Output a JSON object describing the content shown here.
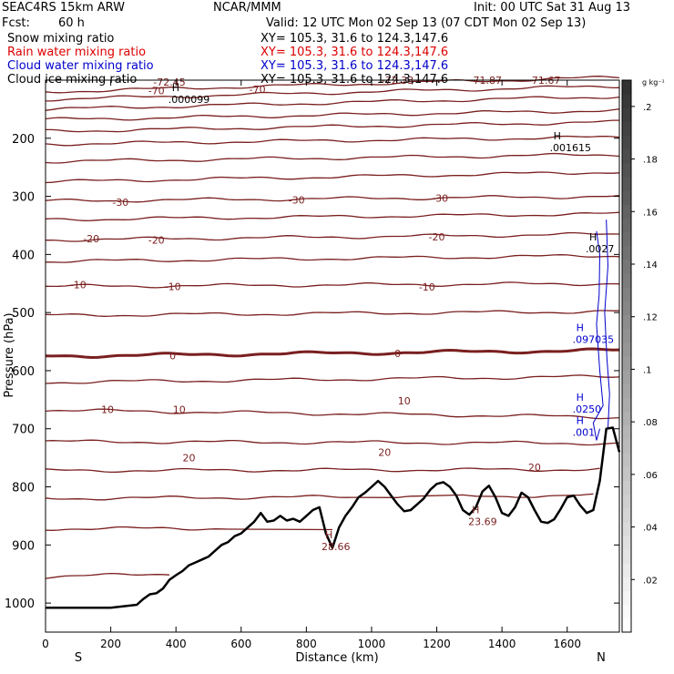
{
  "header": {
    "model": "SEAC4RS 15km ARW",
    "org": "NCAR/MMM",
    "init": "Init: 00 UTC Sat 31 Aug 13",
    "fcst_label": "Fcst:",
    "fcst_value": "60 h",
    "valid": "Valid: 12 UTC Mon 02 Sep 13 (07 CDT Mon 02 Sep 13)"
  },
  "fields": [
    {
      "name": "Snow mixing ratio",
      "xy": "XY= 105.3, 31.6 to 124.3,147.6",
      "color": "#000000"
    },
    {
      "name": "Rain water mixing ratio",
      "xy": "XY= 105.3, 31.6 to 124.3,147.6",
      "color": "#dd0000"
    },
    {
      "name": "Cloud water mixing ratio",
      "xy": "XY= 105.3, 31.6 to 124.3,147.6",
      "color": "#0000cc"
    },
    {
      "name": "Cloud ice mixing ratio",
      "xy": "XY= 105.3, 31.6 to 124.3,147.6",
      "color": "#000000"
    }
  ],
  "chart_data": {
    "type": "line",
    "xlabel": "Distance (km)",
    "ylabel": "Pressure (hPa)",
    "xlim": [
      0,
      1760
    ],
    "ylim": [
      100,
      1050
    ],
    "x_ticks": [
      0,
      200,
      400,
      600,
      800,
      1000,
      1200,
      1400,
      1600
    ],
    "y_ticks": [
      200,
      300,
      400,
      500,
      600,
      700,
      800,
      900,
      1000
    ],
    "direction_left": "S",
    "direction_right": "N",
    "colorbar_unit": "g kg⁻¹",
    "colorbar_ticks": [
      ".02",
      ".04",
      ".06",
      ".08",
      ".1",
      ".12",
      ".14",
      ".16",
      ".18",
      ".2"
    ],
    "contour_labels": [
      "-72.45",
      "-72.33",
      "-71.87",
      "-71.67",
      "-70",
      "-30",
      "-20",
      "-10",
      "0",
      "10",
      "20"
    ],
    "highs": [
      {
        "x": 410,
        "p": 125,
        "value": ".000099"
      },
      {
        "x": 1580,
        "p": 208,
        "value": ".001615"
      },
      {
        "x": 1690,
        "p": 382,
        "value": ".0027"
      },
      {
        "x": 1650,
        "p": 538,
        "value": ".097035"
      },
      {
        "x": 1650,
        "p": 658,
        "value": ".0250"
      },
      {
        "x": 1650,
        "p": 698,
        "value": ".001"
      },
      {
        "x": 880,
        "p": 895,
        "value": "28.66"
      },
      {
        "x": 1330,
        "p": 852,
        "value": "23.69"
      }
    ],
    "terrain": {
      "x": [
        0,
        100,
        200,
        280,
        300,
        320,
        340,
        360,
        380,
        400,
        420,
        440,
        460,
        480,
        500,
        520,
        540,
        560,
        580,
        600,
        620,
        640,
        660,
        680,
        700,
        720,
        740,
        760,
        780,
        800,
        820,
        840,
        860,
        880,
        900,
        920,
        940,
        960,
        980,
        1000,
        1020,
        1040,
        1060,
        1080,
        1100,
        1120,
        1140,
        1160,
        1180,
        1200,
        1220,
        1240,
        1260,
        1280,
        1300,
        1320,
        1340,
        1360,
        1380,
        1400,
        1420,
        1440,
        1460,
        1480,
        1500,
        1520,
        1540,
        1560,
        1580,
        1600,
        1620,
        1640,
        1660,
        1680,
        1700,
        1720,
        1740,
        1760
      ],
      "p": [
        1008,
        1008,
        1008,
        1003,
        993,
        985,
        983,
        975,
        960,
        952,
        945,
        935,
        930,
        925,
        920,
        910,
        900,
        895,
        885,
        880,
        870,
        860,
        845,
        860,
        858,
        850,
        858,
        855,
        860,
        850,
        840,
        835,
        880,
        905,
        870,
        850,
        835,
        818,
        810,
        800,
        790,
        800,
        815,
        830,
        842,
        840,
        830,
        820,
        805,
        795,
        792,
        800,
        815,
        840,
        848,
        835,
        808,
        798,
        818,
        845,
        850,
        835,
        810,
        818,
        840,
        860,
        862,
        856,
        838,
        818,
        815,
        832,
        845,
        840,
        790,
        700,
        698,
        740
      ]
    },
    "isotherms": [
      {
        "label": "-70",
        "p_left": 120,
        "p_right": 95
      },
      {
        "label": "",
        "p_left": 133,
        "p_right": 110
      },
      {
        "label": "",
        "p_left": 150,
        "p_right": 128
      },
      {
        "label": "",
        "p_left": 168,
        "p_right": 152
      },
      {
        "label": "",
        "p_left": 188,
        "p_right": 172
      },
      {
        "label": "",
        "p_left": 210,
        "p_right": 198
      },
      {
        "label": "",
        "p_left": 240,
        "p_right": 228
      },
      {
        "label": "",
        "p_left": 275,
        "p_right": 258
      },
      {
        "label": "-30",
        "p_left": 308,
        "p_right": 300
      },
      {
        "label": "",
        "p_left": 340,
        "p_right": 330
      },
      {
        "label": "-20",
        "p_left": 375,
        "p_right": 365
      },
      {
        "label": "",
        "p_left": 412,
        "p_right": 402
      },
      {
        "label": "-10",
        "p_left": 455,
        "p_right": 450
      },
      {
        "label": "",
        "p_left": 505,
        "p_right": 498
      },
      {
        "label": "0",
        "p_left": 575,
        "p_right": 565
      },
      {
        "label": "",
        "p_left": 620,
        "p_right": 610
      },
      {
        "label": "10",
        "p_left": 668,
        "p_right": 680
      },
      {
        "label": "",
        "p_left": 722,
        "p_right": 725
      },
      {
        "label": "20",
        "p_left": 772,
        "p_right": 770
      },
      {
        "label": "",
        "p_left": 820,
        "p_right": 815
      },
      {
        "label": "",
        "p_left": 872,
        "p_right": 870
      },
      {
        "label": "",
        "p_left": 955,
        "p_right": 930
      }
    ]
  }
}
